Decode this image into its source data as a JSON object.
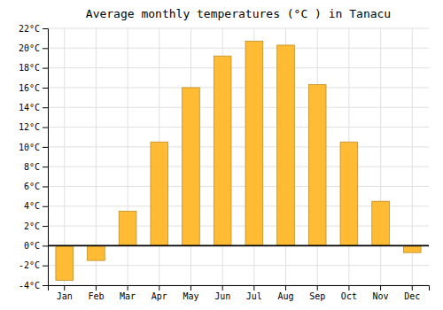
{
  "chart_data": {
    "type": "bar",
    "title": "Average monthly temperatures (°C ) in Tanacu",
    "categories": [
      "Jan",
      "Feb",
      "Mar",
      "Apr",
      "May",
      "Jun",
      "Jul",
      "Aug",
      "Sep",
      "Oct",
      "Nov",
      "Dec"
    ],
    "values": [
      -3.5,
      -1.5,
      3.5,
      10.5,
      16.0,
      19.2,
      20.7,
      20.3,
      16.3,
      10.5,
      4.5,
      -0.7
    ],
    "color": "#FFBB33",
    "ylim": [
      -4,
      22
    ],
    "yticks": [
      {
        "value": -4,
        "label": "-4°C"
      },
      {
        "value": -2,
        "label": "-2°C"
      },
      {
        "value": 0,
        "label": "0°C"
      },
      {
        "value": 2,
        "label": "2°C"
      },
      {
        "value": 4,
        "label": "4°C"
      },
      {
        "value": 6,
        "label": "6°C"
      },
      {
        "value": 8,
        "label": "8°C"
      },
      {
        "value": 10,
        "label": "10°C"
      },
      {
        "value": 12,
        "label": "12°C"
      },
      {
        "value": 14,
        "label": "14°C"
      },
      {
        "value": 16,
        "label": "16°C"
      },
      {
        "value": 18,
        "label": "18°C"
      },
      {
        "value": 20,
        "label": "20°C"
      },
      {
        "value": 22,
        "label": "22°C"
      }
    ],
    "grid": true
  }
}
